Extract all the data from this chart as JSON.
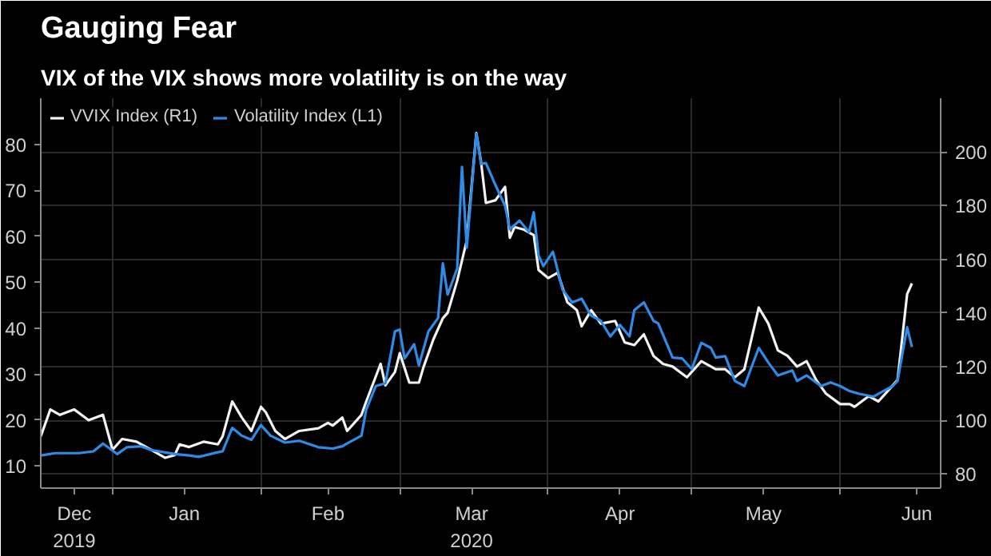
{
  "chart_data": {
    "type": "line",
    "title": "Gauging Fear",
    "subtitle": "VIX of the VIX shows more volatility is on the way",
    "legend": "top left",
    "grid": true,
    "line_style": "solid",
    "marker": "none",
    "xlim": [
      "2019-12-17",
      "2020-06-22"
    ],
    "xticks": [
      {
        "value": "2019-12-24",
        "label": "Dec\n2019"
      },
      {
        "value": "2020-01-01",
        "label": null
      },
      {
        "value": "2020-01-16",
        "label": "Jan"
      },
      {
        "value": "2020-02-01",
        "label": null
      },
      {
        "value": "2020-02-15",
        "label": "Feb"
      },
      {
        "value": "2020-03-01",
        "label": null
      },
      {
        "value": "2020-03-16",
        "label": "Mar\n2020"
      },
      {
        "value": "2020-04-01",
        "label": null
      },
      {
        "value": "2020-04-16",
        "label": "Apr"
      },
      {
        "value": "2020-05-01",
        "label": null
      },
      {
        "value": "2020-05-16",
        "label": "May"
      },
      {
        "value": "2020-06-01",
        "label": null
      },
      {
        "value": "2020-06-17",
        "label": "Jun"
      }
    ],
    "ylim": [
      5.2,
      90
    ],
    "yticks": [
      10,
      20,
      30,
      40,
      50,
      60,
      70,
      80
    ],
    "y2lim": [
      74.7,
      220
    ],
    "y2ticks": [
      80,
      100,
      120,
      140,
      160,
      180,
      200
    ],
    "series": [
      {
        "name": "VVIX Index (R1)",
        "color": "#f2f2f2",
        "axis": "y2",
        "x": [
          "2019-12-17",
          "2019-12-19",
          "2019-12-21",
          "2019-12-24",
          "2019-12-27",
          "2019-12-30",
          "2020-01-01",
          "2020-01-03",
          "2020-01-06",
          "2020-01-09",
          "2020-01-12",
          "2020-01-14",
          "2020-01-15",
          "2020-01-17",
          "2020-01-20",
          "2020-01-23",
          "2020-01-24",
          "2020-01-26",
          "2020-01-28",
          "2020-01-30",
          "2020-02-01",
          "2020-02-02",
          "2020-02-04",
          "2020-02-06",
          "2020-02-09",
          "2020-02-13",
          "2020-02-15",
          "2020-02-16",
          "2020-02-18",
          "2020-02-19",
          "2020-02-22",
          "2020-02-23",
          "2020-02-26",
          "2020-02-27",
          "2020-02-29",
          "2020-03-01",
          "2020-03-03",
          "2020-03-05",
          "2020-03-06",
          "2020-03-08",
          "2020-03-10",
          "2020-03-11",
          "2020-03-13",
          "2020-03-15",
          "2020-03-17",
          "2020-03-18",
          "2020-03-19",
          "2020-03-21",
          "2020-03-23",
          "2020-03-24",
          "2020-03-25",
          "2020-03-27",
          "2020-03-29",
          "2020-03-30",
          "2020-04-01",
          "2020-04-03",
          "2020-04-05",
          "2020-04-07",
          "2020-04-08",
          "2020-04-10",
          "2020-04-12",
          "2020-04-15",
          "2020-04-17",
          "2020-04-19",
          "2020-04-21",
          "2020-04-23",
          "2020-04-25",
          "2020-04-27",
          "2020-04-30",
          "2020-05-03",
          "2020-05-06",
          "2020-05-08",
          "2020-05-10",
          "2020-05-12",
          "2020-05-15",
          "2020-05-17",
          "2020-05-19",
          "2020-05-21",
          "2020-05-23",
          "2020-05-25",
          "2020-05-27",
          "2020-05-29",
          "2020-06-01",
          "2020-06-03",
          "2020-06-04",
          "2020-06-07",
          "2020-06-09",
          "2020-06-11",
          "2020-06-13",
          "2020-06-15",
          "2020-06-16"
        ],
        "values": [
          94,
          104,
          102,
          104,
          100,
          102,
          89,
          93,
          92,
          89,
          86,
          87,
          91,
          90,
          92,
          91,
          94,
          107,
          101,
          96,
          105,
          103,
          96,
          93,
          96,
          97,
          99,
          98,
          101,
          96,
          102,
          107,
          121,
          113,
          118,
          125,
          114,
          114,
          120,
          130,
          138,
          140,
          152,
          167,
          207,
          196,
          181,
          182,
          187,
          168,
          172,
          171,
          169,
          156,
          153,
          155,
          144,
          141,
          135,
          141,
          136,
          137,
          129,
          128,
          132,
          124,
          121,
          120,
          116,
          122,
          119,
          119,
          116,
          119,
          142,
          136,
          126,
          124,
          120,
          122,
          115,
          110,
          106,
          106,
          105,
          109,
          107,
          111,
          115,
          147,
          151
        ]
      },
      {
        "name": "Volatility Index (L1)",
        "color": "#2e8be6",
        "x": [
          "2019-12-17",
          "2019-12-20",
          "2019-12-25",
          "2019-12-28",
          "2019-12-30",
          "2020-01-02",
          "2020-01-04",
          "2020-01-07",
          "2020-01-09",
          "2020-01-14",
          "2020-01-17",
          "2020-01-19",
          "2020-01-23",
          "2020-01-24",
          "2020-01-26",
          "2020-01-28",
          "2020-01-30",
          "2020-02-01",
          "2020-02-03",
          "2020-02-06",
          "2020-02-09",
          "2020-02-13",
          "2020-02-16",
          "2020-02-18",
          "2020-02-19",
          "2020-02-22",
          "2020-02-23",
          "2020-02-25",
          "2020-02-27",
          "2020-02-29",
          "2020-03-01",
          "2020-03-02",
          "2020-03-04",
          "2020-03-05",
          "2020-03-07",
          "2020-03-09",
          "2020-03-10",
          "2020-03-11",
          "2020-03-13",
          "2020-03-14",
          "2020-03-15",
          "2020-03-17",
          "2020-03-18",
          "2020-03-19",
          "2020-03-21",
          "2020-03-23",
          "2020-03-24",
          "2020-03-26",
          "2020-03-28",
          "2020-03-29",
          "2020-03-30",
          "2020-03-31",
          "2020-04-02",
          "2020-04-04",
          "2020-04-06",
          "2020-04-08",
          "2020-04-10",
          "2020-04-12",
          "2020-04-14",
          "2020-04-16",
          "2020-04-18",
          "2020-04-19",
          "2020-04-21",
          "2020-04-23",
          "2020-04-24",
          "2020-04-27",
          "2020-04-29",
          "2020-05-01",
          "2020-05-03",
          "2020-05-05",
          "2020-05-06",
          "2020-05-08",
          "2020-05-10",
          "2020-05-12",
          "2020-05-15",
          "2020-05-17",
          "2020-05-19",
          "2020-05-22",
          "2020-05-23",
          "2020-05-25",
          "2020-05-28",
          "2020-05-30",
          "2020-06-01",
          "2020-06-03",
          "2020-06-05",
          "2020-06-08",
          "2020-06-10",
          "2020-06-12",
          "2020-06-13",
          "2020-06-15",
          "2020-06-16"
        ],
        "values": [
          12.3,
          12.8,
          12.8,
          13.2,
          14.9,
          12.6,
          14.1,
          14.3,
          13.5,
          12.6,
          12.3,
          12,
          13,
          13.2,
          18.3,
          16.6,
          15.7,
          18.9,
          16.6,
          15.1,
          15.5,
          14.1,
          13.8,
          14.3,
          14.9,
          16.6,
          22.3,
          27.4,
          28,
          39.3,
          39.7,
          33.4,
          36.5,
          31.9,
          39.3,
          42.2,
          54.1,
          47.3,
          53,
          75.1,
          57.5,
          82.3,
          75.7,
          75.9,
          71.1,
          66.6,
          61.5,
          63.4,
          60.9,
          65.2,
          55.8,
          53.5,
          56.6,
          48.4,
          45.6,
          46.4,
          42.7,
          41.6,
          38.2,
          40.7,
          38.2,
          43.9,
          45.6,
          41.6,
          41,
          33.6,
          33.4,
          31.1,
          36.8,
          35.7,
          33.6,
          33.9,
          28.5,
          27.4,
          35.7,
          32.5,
          29.7,
          30.8,
          28.5,
          29.7,
          27.4,
          28.2,
          27.4,
          26.3,
          25.7,
          25.1,
          26.3,
          27.4,
          28.5,
          40.2,
          35.9
        ]
      }
    ]
  }
}
